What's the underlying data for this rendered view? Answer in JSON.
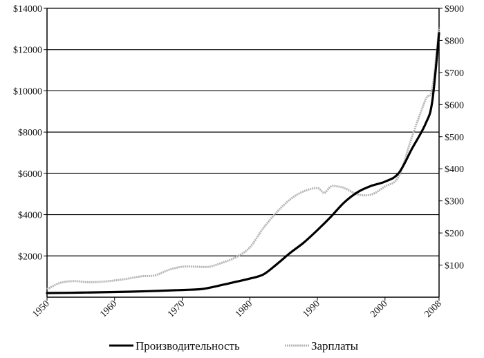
{
  "chart_data": {
    "type": "line",
    "title": "",
    "xlabel": "",
    "x_ticks": [
      "1950",
      "1960",
      "1970",
      "1980",
      "1990",
      "2000",
      "2008"
    ],
    "y_left": {
      "range": [
        0,
        14000
      ],
      "ticks": [
        "$2000",
        "$4000",
        "$6000",
        "$8000",
        "$10000",
        "$12000",
        "$14000"
      ],
      "tick_values": [
        2000,
        4000,
        6000,
        8000,
        10000,
        12000,
        14000
      ]
    },
    "y_right": {
      "range": [
        0,
        900
      ],
      "ticks": [
        "$100",
        "$200",
        "$300",
        "$400",
        "$500",
        "$600",
        "$700",
        "$800",
        "$900"
      ],
      "tick_values": [
        100,
        200,
        300,
        400,
        500,
        600,
        700,
        800,
        900
      ]
    },
    "x_range": [
      1950,
      2008
    ],
    "grid": true,
    "legend_position": "bottom",
    "colors": {
      "productivity": "#000000",
      "wages": "#b5b5b5"
    },
    "series": [
      {
        "name": "Производительность",
        "axis": "left",
        "x": [
          1950,
          1955,
          1960,
          1965,
          1970,
          1973,
          1976,
          1978,
          1980,
          1982,
          1984,
          1986,
          1988,
          1990,
          1992,
          1994,
          1996,
          1998,
          2000,
          2002,
          2004,
          2006,
          2007,
          2008
        ],
        "values": [
          200,
          220,
          250,
          290,
          350,
          400,
          600,
          750,
          900,
          1100,
          1600,
          2150,
          2650,
          3250,
          3900,
          4600,
          5100,
          5400,
          5600,
          6000,
          7200,
          8400,
          9500,
          12800
        ]
      },
      {
        "name": "Зарплаты",
        "axis": "right",
        "x": [
          1950,
          1952,
          1954,
          1956,
          1958,
          1960,
          1962,
          1964,
          1966,
          1968,
          1970,
          1972,
          1974,
          1976,
          1978,
          1980,
          1982,
          1984,
          1986,
          1988,
          1990,
          1991,
          1992,
          1993,
          1994,
          1996,
          1998,
          2000,
          2002,
          2004,
          2006,
          2007,
          2008
        ],
        "values": [
          25,
          45,
          50,
          47,
          48,
          52,
          58,
          65,
          68,
          85,
          95,
          95,
          95,
          108,
          125,
          155,
          215,
          265,
          305,
          330,
          340,
          325,
          345,
          345,
          340,
          320,
          320,
          345,
          375,
          500,
          615,
          650,
          840
        ]
      }
    ]
  }
}
